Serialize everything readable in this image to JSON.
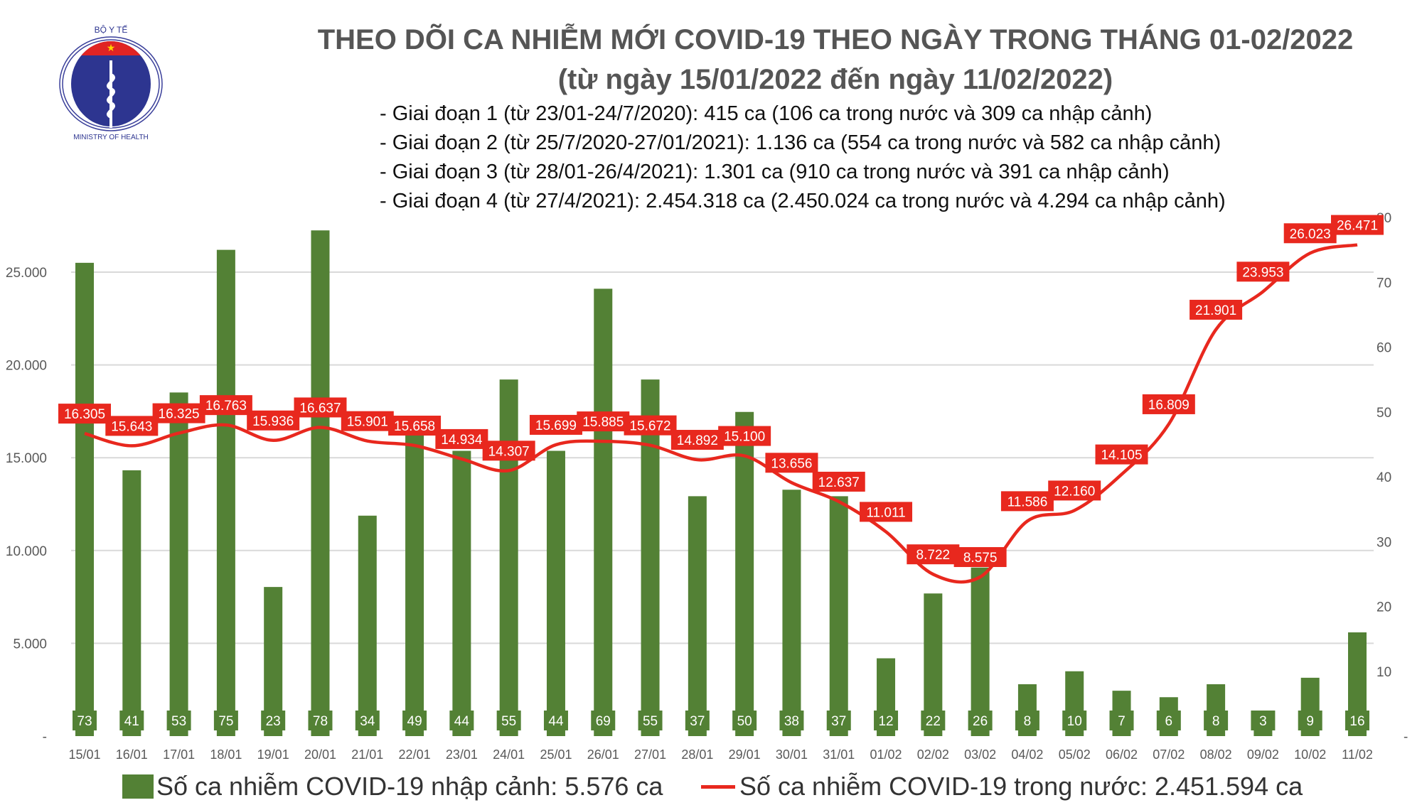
{
  "header": {
    "logo_text_top": "BỘ Y TẾ",
    "logo_text_bottom": "MINISTRY OF HEALTH",
    "title_line1": "THEO DÕI CA NHIỄM MỚI COVID-19 THEO NGÀY TRONG THÁNG 01-02/2022",
    "title_line2": "(từ ngày 15/01/2022 đến ngày 11/02/2022)",
    "bullets": [
      "- Giai đoạn 1 (từ 23/01-24/7/2020): 415 ca (106 ca trong nước và 309 ca nhập cảnh)",
      "- Giai đoạn 2 (từ 25/7/2020-27/01/2021): 1.136 ca (554 ca trong nước và 582 ca nhập cảnh)",
      "- Giai đoạn 3 (từ 28/01-26/4/2021): 1.301 ca (910 ca trong nước và 391 ca nhập cảnh)",
      "- Giai đoạn 4 (từ 27/4/2021): 2.454.318 ca (2.450.024 ca trong nước và 4.294 ca nhập cảnh)"
    ]
  },
  "chart_data": {
    "type": "bar+line",
    "categories": [
      "15/01",
      "16/01",
      "17/01",
      "18/01",
      "19/01",
      "20/01",
      "21/01",
      "22/01",
      "23/01",
      "24/01",
      "25/01",
      "26/01",
      "27/01",
      "28/01",
      "29/01",
      "30/01",
      "31/01",
      "01/02",
      "02/02",
      "03/02",
      "04/02",
      "05/02",
      "06/02",
      "07/02",
      "08/02",
      "09/02",
      "10/02",
      "11/02"
    ],
    "series": [
      {
        "name": "Số ca nhiễm COVID-19 nhập cảnh: 5.576 ca",
        "type": "bar",
        "axis": "right",
        "color": "#538135",
        "values": [
          73,
          41,
          53,
          75,
          23,
          78,
          34,
          49,
          44,
          55,
          44,
          69,
          55,
          37,
          50,
          38,
          37,
          12,
          22,
          26,
          8,
          10,
          7,
          6,
          8,
          3,
          9,
          16
        ]
      },
      {
        "name": "Số ca nhiễm COVID-19 trong nước: 2.451.594 ca",
        "type": "line",
        "axis": "left",
        "color": "#e8281e",
        "values": [
          16305,
          15643,
          16325,
          16763,
          15936,
          16637,
          15901,
          15658,
          14934,
          14307,
          15699,
          15885,
          15672,
          14892,
          15100,
          13656,
          12637,
          11011,
          8722,
          8575,
          11586,
          12160,
          14105,
          16809,
          21901,
          23953,
          26023,
          26471
        ],
        "labels": [
          "16.305",
          "15.643",
          "16.325",
          "16.763",
          "15.936",
          "16.637",
          "15.901",
          "15.658",
          "14.934",
          "14.307",
          "15.699",
          "15.885",
          "15.672",
          "14.892",
          "15.100",
          "13.656",
          "12.637",
          "11.011",
          "8.722",
          "8.575",
          "11.586",
          "12.160",
          "14.105",
          "16.809",
          "21.901",
          "23.953",
          "26.023",
          "26.471"
        ]
      }
    ],
    "left_axis": {
      "ticks": [
        "-",
        "5.000",
        "10.000",
        "15.000",
        "20.000",
        "25.000"
      ],
      "range": [
        0,
        28000
      ]
    },
    "right_axis": {
      "ticks": [
        "-",
        "10",
        "20",
        "30",
        "40",
        "50",
        "60",
        "70",
        "80"
      ],
      "range": [
        0,
        80
      ]
    },
    "grid": true,
    "legend_position": "bottom"
  }
}
